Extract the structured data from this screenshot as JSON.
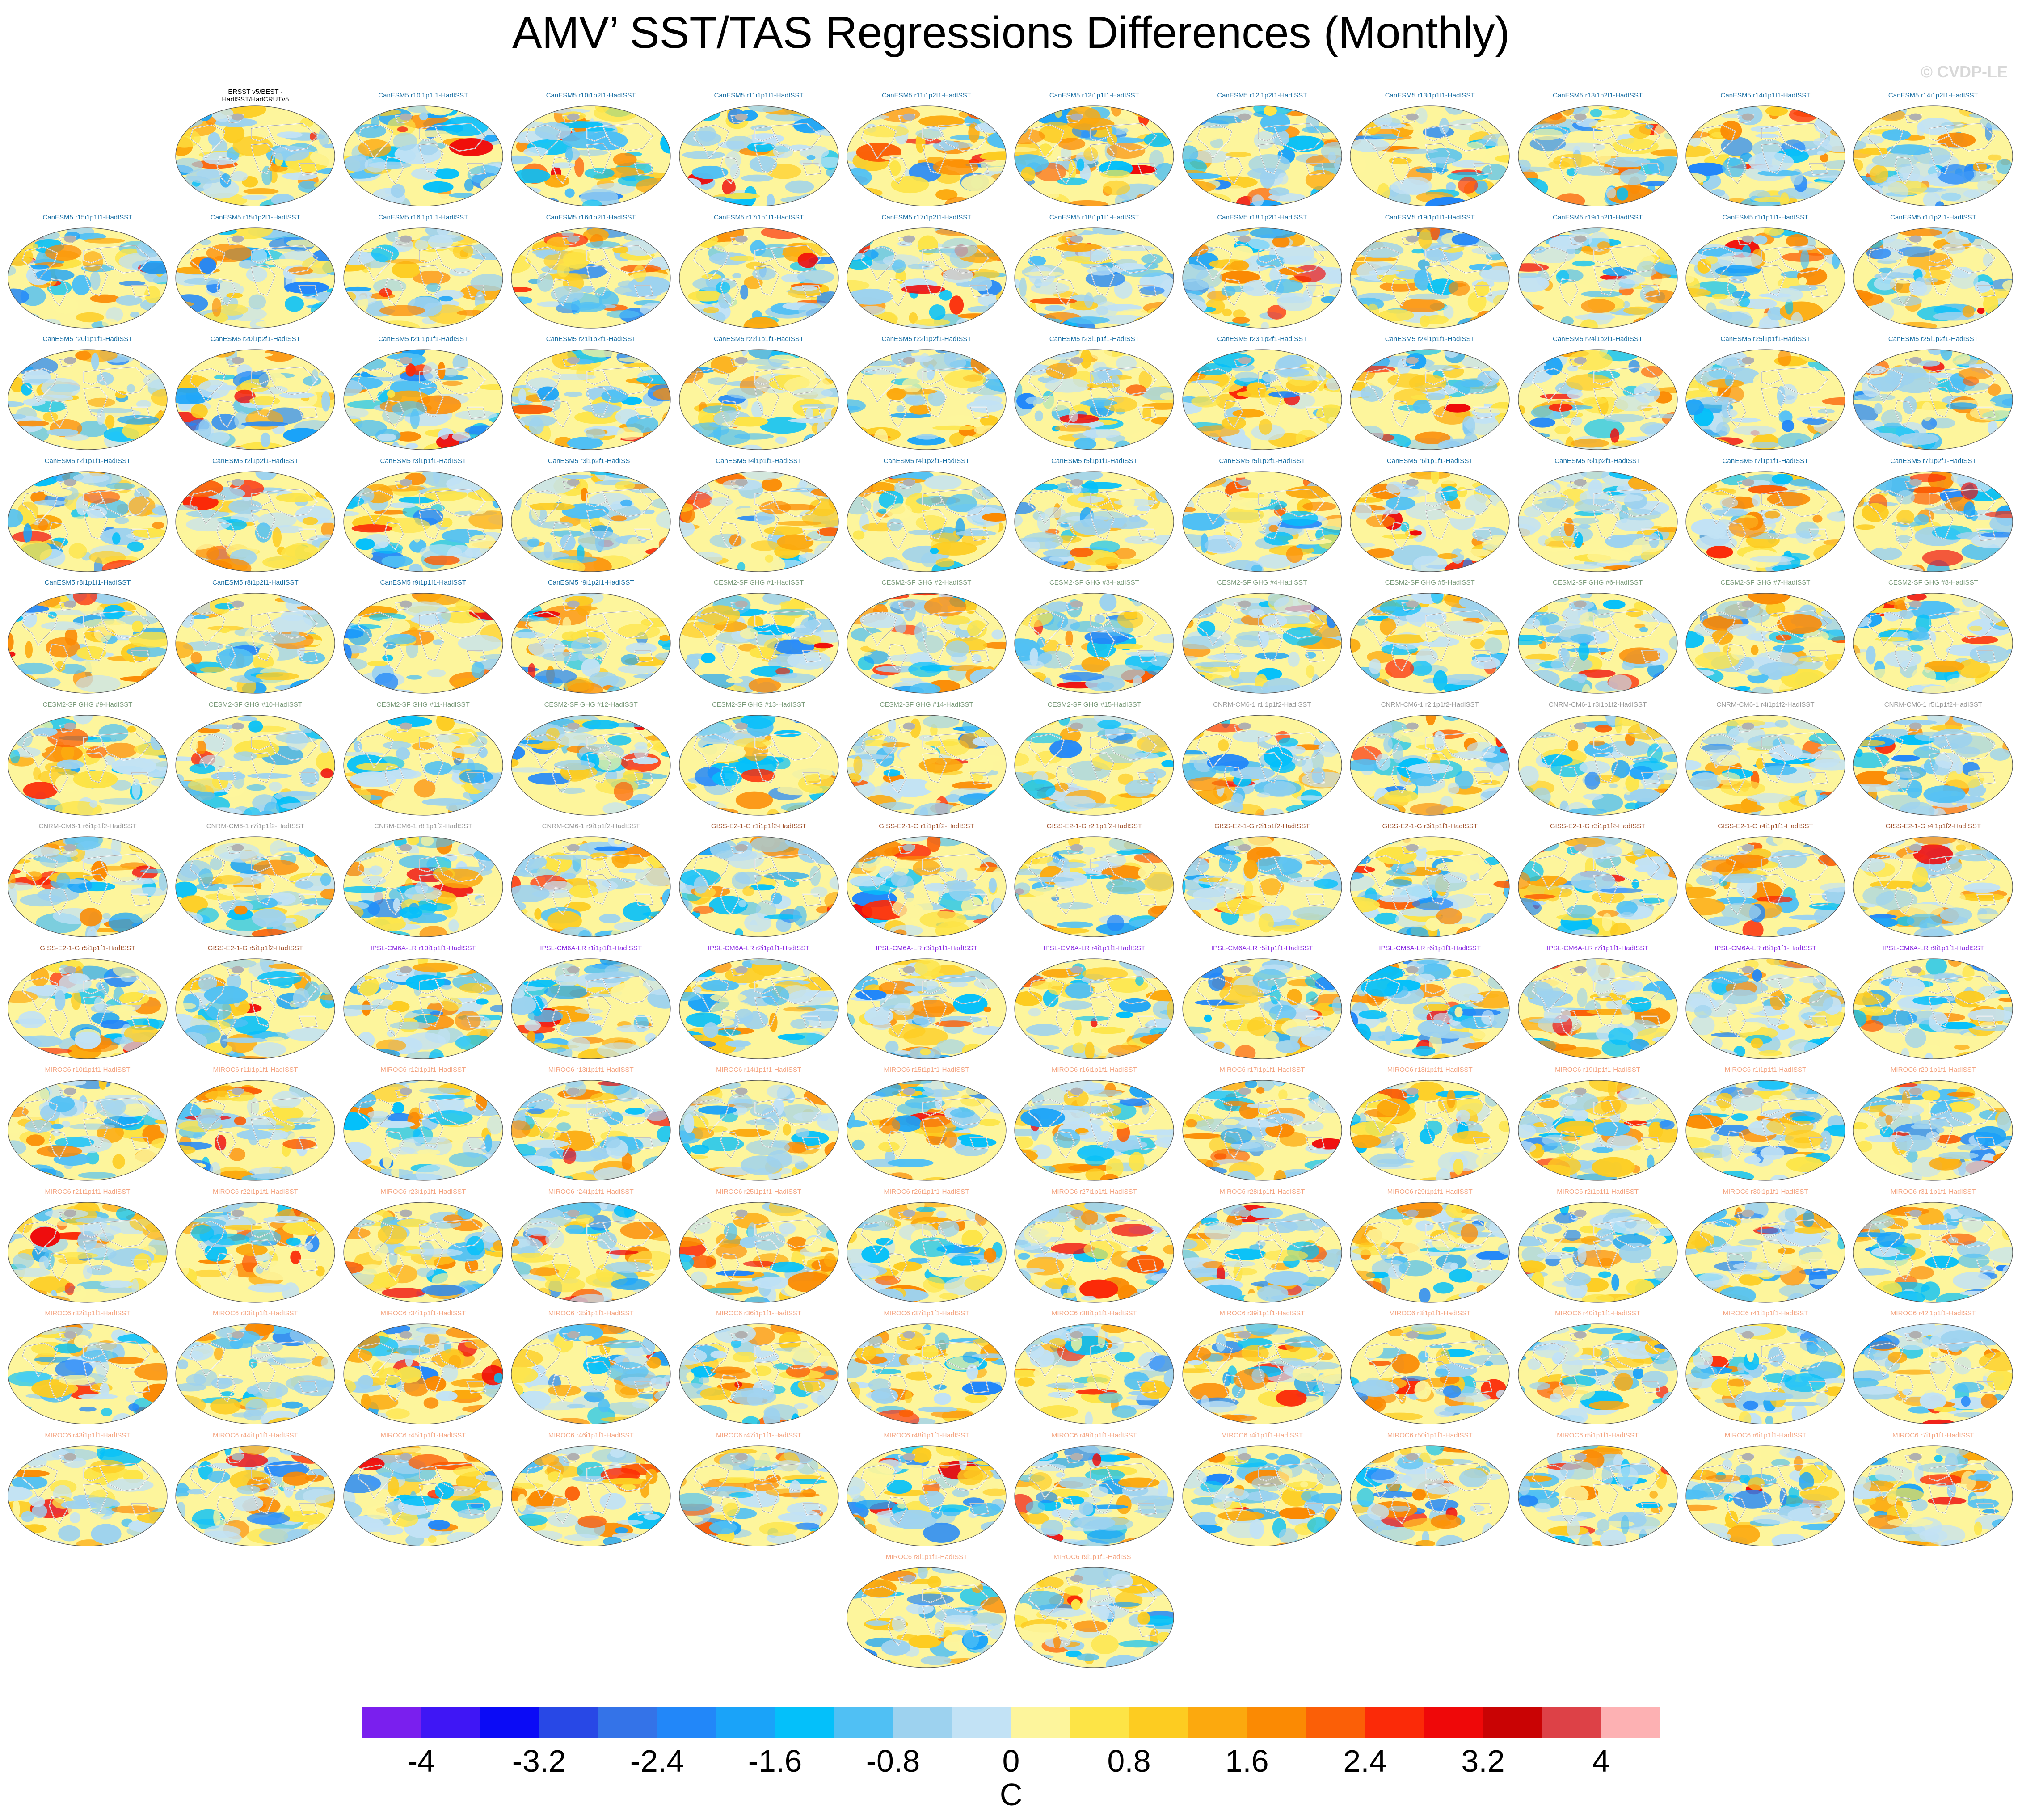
{
  "title": "AMV’ SST/TAS Regressions Differences (Monthly)",
  "watermark": "© CVDP-LE",
  "chart_data": {
    "type": "heatmap",
    "description_kind": "grid of global map panels",
    "units": "C",
    "colorbar": {
      "ticks": [
        "-4",
        "-3.2",
        "-2.4",
        "-1.6",
        "-0.8",
        "0",
        "0.8",
        "1.6",
        "2.4",
        "3.2",
        "4"
      ],
      "colors": [
        "#7a1fee",
        "#3f16f5",
        "#0b0bf6",
        "#2848e6",
        "#3473e8",
        "#2287f9",
        "#1aa3f9",
        "#04c0fa",
        "#50c0f4",
        "#9dd2ef",
        "#c2e2f5",
        "#fdf59c",
        "#fde446",
        "#fdcc21",
        "#fca90e",
        "#fb8a03",
        "#fb5f07",
        "#fb2a08",
        "#ef0809",
        "#c90304",
        "#dd4147",
        "#fdb1b3"
      ]
    },
    "panels": [
      {
        "title": "ERSST v5/BEST -\nHadISST/HadCRUTv5",
        "color": "#000000"
      },
      {
        "title": "CanESM5 r10i1p1f1-HadISST",
        "color": "#1a6fa3"
      },
      {
        "title": "CanESM5 r10i1p2f1-HadISST",
        "color": "#1a6fa3"
      },
      {
        "title": "CanESM5 r11i1p1f1-HadISST",
        "color": "#1a6fa3"
      },
      {
        "title": "CanESM5 r11i1p2f1-HadISST",
        "color": "#1a6fa3"
      },
      {
        "title": "CanESM5 r12i1p1f1-HadISST",
        "color": "#1a6fa3"
      },
      {
        "title": "CanESM5 r12i1p2f1-HadISST",
        "color": "#1a6fa3"
      },
      {
        "title": "CanESM5 r13i1p1f1-HadISST",
        "color": "#1a6fa3"
      },
      {
        "title": "CanESM5 r13i1p2f1-HadISST",
        "color": "#1a6fa3"
      },
      {
        "title": "CanESM5 r14i1p1f1-HadISST",
        "color": "#1a6fa3"
      },
      {
        "title": "CanESM5 r14i1p2f1-HadISST",
        "color": "#1a6fa3"
      },
      {
        "title": "CanESM5 r15i1p1f1-HadISST",
        "color": "#1a6fa3"
      },
      {
        "title": "CanESM5 r15i1p2f1-HadISST",
        "color": "#1a6fa3"
      },
      {
        "title": "CanESM5 r16i1p1f1-HadISST",
        "color": "#1a6fa3"
      },
      {
        "title": "CanESM5 r16i1p2f1-HadISST",
        "color": "#1a6fa3"
      },
      {
        "title": "CanESM5 r17i1p1f1-HadISST",
        "color": "#1a6fa3"
      },
      {
        "title": "CanESM5 r17i1p2f1-HadISST",
        "color": "#1a6fa3"
      },
      {
        "title": "CanESM5 r18i1p1f1-HadISST",
        "color": "#1a6fa3"
      },
      {
        "title": "CanESM5 r18i1p2f1-HadISST",
        "color": "#1a6fa3"
      },
      {
        "title": "CanESM5 r19i1p1f1-HadISST",
        "color": "#1a6fa3"
      },
      {
        "title": "CanESM5 r19i1p2f1-HadISST",
        "color": "#1a6fa3"
      },
      {
        "title": "CanESM5 r1i1p1f1-HadISST",
        "color": "#1a6fa3"
      },
      {
        "title": "CanESM5 r1i1p2f1-HadISST",
        "color": "#1a6fa3"
      },
      {
        "title": "CanESM5 r20i1p1f1-HadISST",
        "color": "#1a6fa3"
      },
      {
        "title": "CanESM5 r20i1p2f1-HadISST",
        "color": "#1a6fa3"
      },
      {
        "title": "CanESM5 r21i1p1f1-HadISST",
        "color": "#1a6fa3"
      },
      {
        "title": "CanESM5 r21i1p2f1-HadISST",
        "color": "#1a6fa3"
      },
      {
        "title": "CanESM5 r22i1p1f1-HadISST",
        "color": "#1a6fa3"
      },
      {
        "title": "CanESM5 r22i1p2f1-HadISST",
        "color": "#1a6fa3"
      },
      {
        "title": "CanESM5 r23i1p1f1-HadISST",
        "color": "#1a6fa3"
      },
      {
        "title": "CanESM5 r23i1p2f1-HadISST",
        "color": "#1a6fa3"
      },
      {
        "title": "CanESM5 r24i1p1f1-HadISST",
        "color": "#1a6fa3"
      },
      {
        "title": "CanESM5 r24i1p2f1-HadISST",
        "color": "#1a6fa3"
      },
      {
        "title": "CanESM5 r25i1p1f1-HadISST",
        "color": "#1a6fa3"
      },
      {
        "title": "CanESM5 r25i1p2f1-HadISST",
        "color": "#1a6fa3"
      },
      {
        "title": "CanESM5 r2i1p1f1-HadISST",
        "color": "#1a6fa3"
      },
      {
        "title": "CanESM5 r2i1p2f1-HadISST",
        "color": "#1a6fa3"
      },
      {
        "title": "CanESM5 r3i1p1f1-HadISST",
        "color": "#1a6fa3"
      },
      {
        "title": "CanESM5 r3i1p2f1-HadISST",
        "color": "#1a6fa3"
      },
      {
        "title": "CanESM5 r4i1p1f1-HadISST",
        "color": "#1a6fa3"
      },
      {
        "title": "CanESM5 r4i1p2f1-HadISST",
        "color": "#1a6fa3"
      },
      {
        "title": "CanESM5 r5i1p1f1-HadISST",
        "color": "#1a6fa3"
      },
      {
        "title": "CanESM5 r5i1p2f1-HadISST",
        "color": "#1a6fa3"
      },
      {
        "title": "CanESM5 r6i1p1f1-HadISST",
        "color": "#1a6fa3"
      },
      {
        "title": "CanESM5 r6i1p2f1-HadISST",
        "color": "#1a6fa3"
      },
      {
        "title": "CanESM5 r7i1p1f1-HadISST",
        "color": "#1a6fa3"
      },
      {
        "title": "CanESM5 r7i1p2f1-HadISST",
        "color": "#1a6fa3"
      },
      {
        "title": "CanESM5 r8i1p1f1-HadISST",
        "color": "#1a6fa3"
      },
      {
        "title": "CanESM5 r8i1p2f1-HadISST",
        "color": "#1a6fa3"
      },
      {
        "title": "CanESM5 r9i1p1f1-HadISST",
        "color": "#1a6fa3"
      },
      {
        "title": "CanESM5 r9i1p2f1-HadISST",
        "color": "#1a6fa3"
      },
      {
        "title": "CESM2-SF GHG #1-HadISST",
        "color": "#7a9a7a"
      },
      {
        "title": "CESM2-SF GHG #2-HadISST",
        "color": "#7a9a7a"
      },
      {
        "title": "CESM2-SF GHG #3-HadISST",
        "color": "#7a9a7a"
      },
      {
        "title": "CESM2-SF GHG #4-HadISST",
        "color": "#7a9a7a"
      },
      {
        "title": "CESM2-SF GHG #5-HadISST",
        "color": "#7a9a7a"
      },
      {
        "title": "CESM2-SF GHG #6-HadISST",
        "color": "#7a9a7a"
      },
      {
        "title": "CESM2-SF GHG #7-HadISST",
        "color": "#7a9a7a"
      },
      {
        "title": "CESM2-SF GHG #8-HadISST",
        "color": "#7a9a7a"
      },
      {
        "title": "CESM2-SF GHG #9-HadISST",
        "color": "#7a9a7a"
      },
      {
        "title": "CESM2-SF GHG #10-HadISST",
        "color": "#7a9a7a"
      },
      {
        "title": "CESM2-SF GHG #11-HadISST",
        "color": "#7a9a7a"
      },
      {
        "title": "CESM2-SF GHG #12-HadISST",
        "color": "#7a9a7a"
      },
      {
        "title": "CESM2-SF GHG #13-HadISST",
        "color": "#7a9a7a"
      },
      {
        "title": "CESM2-SF GHG #14-HadISST",
        "color": "#7a9a7a"
      },
      {
        "title": "CESM2-SF GHG #15-HadISST",
        "color": "#7a9a7a"
      },
      {
        "title": "CNRM-CM6-1 r1i1p1f2-HadISST",
        "color": "#999999"
      },
      {
        "title": "CNRM-CM6-1 r2i1p1f2-HadISST",
        "color": "#999999"
      },
      {
        "title": "CNRM-CM6-1 r3i1p1f2-HadISST",
        "color": "#999999"
      },
      {
        "title": "CNRM-CM6-1 r4i1p1f2-HadISST",
        "color": "#999999"
      },
      {
        "title": "CNRM-CM6-1 r5i1p1f2-HadISST",
        "color": "#999999"
      },
      {
        "title": "CNRM-CM6-1 r6i1p1f2-HadISST",
        "color": "#999999"
      },
      {
        "title": "CNRM-CM6-1 r7i1p1f2-HadISST",
        "color": "#999999"
      },
      {
        "title": "CNRM-CM6-1 r8i1p1f2-HadISST",
        "color": "#999999"
      },
      {
        "title": "CNRM-CM6-1 r9i1p1f2-HadISST",
        "color": "#999999"
      },
      {
        "title": "GISS-E2-1-G r1i1p1f2-HadISST",
        "color": "#a0522d"
      },
      {
        "title": "GISS-E2-1-G r1i1p1f2-HadISST",
        "color": "#a0522d"
      },
      {
        "title": "GISS-E2-1-G r2i1p1f2-HadISST",
        "color": "#a0522d"
      },
      {
        "title": "GISS-E2-1-G r2i1p1f2-HadISST",
        "color": "#a0522d"
      },
      {
        "title": "GISS-E2-1-G r3i1p1f1-HadISST",
        "color": "#a0522d"
      },
      {
        "title": "GISS-E2-1-G r3i1p1f2-HadISST",
        "color": "#a0522d"
      },
      {
        "title": "GISS-E2-1-G r4i1p1f1-HadISST",
        "color": "#a0522d"
      },
      {
        "title": "GISS-E2-1-G r4i1p1f2-HadISST",
        "color": "#a0522d"
      },
      {
        "title": "GISS-E2-1-G r5i1p1f1-HadISST",
        "color": "#a0522d"
      },
      {
        "title": "GISS-E2-1-G r5i1p1f2-HadISST",
        "color": "#a0522d"
      },
      {
        "title": "IPSL-CM6A-LR r10i1p1f1-HadISST",
        "color": "#8a2be2"
      },
      {
        "title": "IPSL-CM6A-LR r1i1p1f1-HadISST",
        "color": "#8a2be2"
      },
      {
        "title": "IPSL-CM6A-LR r2i1p1f1-HadISST",
        "color": "#8a2be2"
      },
      {
        "title": "IPSL-CM6A-LR r3i1p1f1-HadISST",
        "color": "#8a2be2"
      },
      {
        "title": "IPSL-CM6A-LR r4i1p1f1-HadISST",
        "color": "#8a2be2"
      },
      {
        "title": "IPSL-CM6A-LR r5i1p1f1-HadISST",
        "color": "#8a2be2"
      },
      {
        "title": "IPSL-CM6A-LR r6i1p1f1-HadISST",
        "color": "#8a2be2"
      },
      {
        "title": "IPSL-CM6A-LR r7i1p1f1-HadISST",
        "color": "#8a2be2"
      },
      {
        "title": "IPSL-CM6A-LR r8i1p1f1-HadISST",
        "color": "#8a2be2"
      },
      {
        "title": "IPSL-CM6A-LR r9i1p1f1-HadISST",
        "color": "#8a2be2"
      },
      {
        "title": "MIROC6 r10i1p1f1-HadISST",
        "color": "#f4a582"
      },
      {
        "title": "MIROC6 r11i1p1f1-HadISST",
        "color": "#f4a582"
      },
      {
        "title": "MIROC6 r12i1p1f1-HadISST",
        "color": "#f4a582"
      },
      {
        "title": "MIROC6 r13i1p1f1-HadISST",
        "color": "#f4a582"
      },
      {
        "title": "MIROC6 r14i1p1f1-HadISST",
        "color": "#f4a582"
      },
      {
        "title": "MIROC6 r15i1p1f1-HadISST",
        "color": "#f4a582"
      },
      {
        "title": "MIROC6 r16i1p1f1-HadISST",
        "color": "#f4a582"
      },
      {
        "title": "MIROC6 r17i1p1f1-HadISST",
        "color": "#f4a582"
      },
      {
        "title": "MIROC6 r18i1p1f1-HadISST",
        "color": "#f4a582"
      },
      {
        "title": "MIROC6 r19i1p1f1-HadISST",
        "color": "#f4a582"
      },
      {
        "title": "MIROC6 r1i1p1f1-HadISST",
        "color": "#f4a582"
      },
      {
        "title": "MIROC6 r20i1p1f1-HadISST",
        "color": "#f4a582"
      },
      {
        "title": "MIROC6 r21i1p1f1-HadISST",
        "color": "#f4a582"
      },
      {
        "title": "MIROC6 r22i1p1f1-HadISST",
        "color": "#f4a582"
      },
      {
        "title": "MIROC6 r23i1p1f1-HadISST",
        "color": "#f4a582"
      },
      {
        "title": "MIROC6 r24i1p1f1-HadISST",
        "color": "#f4a582"
      },
      {
        "title": "MIROC6 r25i1p1f1-HadISST",
        "color": "#f4a582"
      },
      {
        "title": "MIROC6 r26i1p1f1-HadISST",
        "color": "#f4a582"
      },
      {
        "title": "MIROC6 r27i1p1f1-HadISST",
        "color": "#f4a582"
      },
      {
        "title": "MIROC6 r28i1p1f1-HadISST",
        "color": "#f4a582"
      },
      {
        "title": "MIROC6 r29i1p1f1-HadISST",
        "color": "#f4a582"
      },
      {
        "title": "MIROC6 r2i1p1f1-HadISST",
        "color": "#f4a582"
      },
      {
        "title": "MIROC6 r30i1p1f1-HadISST",
        "color": "#f4a582"
      },
      {
        "title": "MIROC6 r31i1p1f1-HadISST",
        "color": "#f4a582"
      },
      {
        "title": "MIROC6 r32i1p1f1-HadISST",
        "color": "#f4a582"
      },
      {
        "title": "MIROC6 r33i1p1f1-HadISST",
        "color": "#f4a582"
      },
      {
        "title": "MIROC6 r34i1p1f1-HadISST",
        "color": "#f4a582"
      },
      {
        "title": "MIROC6 r35i1p1f1-HadISST",
        "color": "#f4a582"
      },
      {
        "title": "MIROC6 r36i1p1f1-HadISST",
        "color": "#f4a582"
      },
      {
        "title": "MIROC6 r37i1p1f1-HadISST",
        "color": "#f4a582"
      },
      {
        "title": "MIROC6 r38i1p1f1-HadISST",
        "color": "#f4a582"
      },
      {
        "title": "MIROC6 r39i1p1f1-HadISST",
        "color": "#f4a582"
      },
      {
        "title": "MIROC6 r3i1p1f1-HadISST",
        "color": "#f4a582"
      },
      {
        "title": "MIROC6 r40i1p1f1-HadISST",
        "color": "#f4a582"
      },
      {
        "title": "MIROC6 r41i1p1f1-HadISST",
        "color": "#f4a582"
      },
      {
        "title": "MIROC6 r42i1p1f1-HadISST",
        "color": "#f4a582"
      },
      {
        "title": "MIROC6 r43i1p1f1-HadISST",
        "color": "#f4a582"
      },
      {
        "title": "MIROC6 r44i1p1f1-HadISST",
        "color": "#f4a582"
      },
      {
        "title": "MIROC6 r45i1p1f1-HadISST",
        "color": "#f4a582"
      },
      {
        "title": "MIROC6 r46i1p1f1-HadISST",
        "color": "#f4a582"
      },
      {
        "title": "MIROC6 r47i1p1f1-HadISST",
        "color": "#f4a582"
      },
      {
        "title": "MIROC6 r48i1p1f1-HadISST",
        "color": "#f4a582"
      },
      {
        "title": "MIROC6 r49i1p1f1-HadISST",
        "color": "#f4a582"
      },
      {
        "title": "MIROC6 r4i1p1f1-HadISST",
        "color": "#f4a582"
      },
      {
        "title": "MIROC6 r50i1p1f1-HadISST",
        "color": "#f4a582"
      },
      {
        "title": "MIROC6 r5i1p1f1-HadISST",
        "color": "#f4a582"
      },
      {
        "title": "MIROC6 r6i1p1f1-HadISST",
        "color": "#f4a582"
      },
      {
        "title": "MIROC6 r7i1p1f1-HadISST",
        "color": "#f4a582"
      },
      {
        "title": "MIROC6 r8i1p1f1-HadISST",
        "color": "#f4a582"
      },
      {
        "title": "MIROC6 r9i1p1f1-HadISST",
        "color": "#f4a582"
      }
    ]
  }
}
